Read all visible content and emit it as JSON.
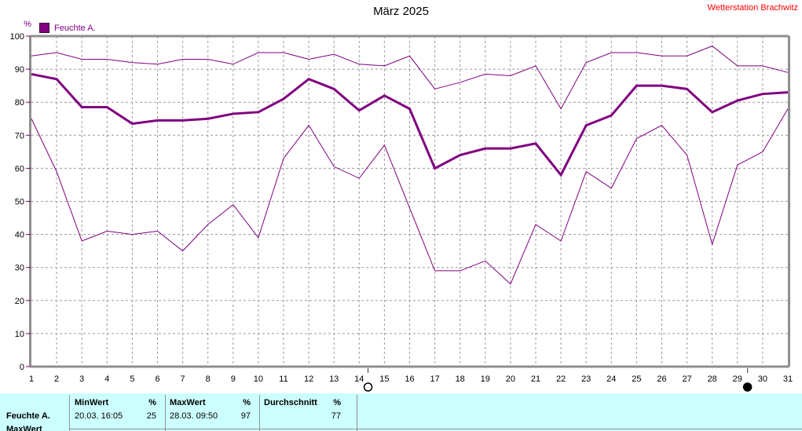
{
  "header": {
    "title": "März 2025",
    "station": "Wetterstation Brachwitz"
  },
  "legend": {
    "label": "Feuchte A.",
    "color": "#800080"
  },
  "chart_data": {
    "type": "line",
    "title": "März 2025",
    "ylabel": "%",
    "ylim": [
      0,
      100
    ],
    "y_ticks": [
      0,
      10,
      20,
      30,
      40,
      50,
      60,
      70,
      80,
      90,
      100
    ],
    "x_ticks": [
      1,
      2,
      3,
      4,
      5,
      6,
      7,
      8,
      9,
      10,
      11,
      12,
      13,
      14,
      15,
      16,
      17,
      18,
      19,
      20,
      21,
      22,
      23,
      24,
      25,
      26,
      27,
      28,
      29,
      30,
      31
    ],
    "grid": true,
    "legend_position": "top-left",
    "line_color": "#800080",
    "series": [
      {
        "name": "max",
        "width": 1,
        "values": [
          94,
          95,
          93,
          93,
          92,
          91.5,
          93,
          93,
          91.5,
          95,
          95,
          93,
          94.5,
          91.5,
          91,
          94,
          84,
          86,
          88.5,
          88,
          91,
          78,
          92,
          95,
          95,
          94,
          94,
          97,
          91,
          91,
          89
        ]
      },
      {
        "name": "avg",
        "width": 3,
        "values": [
          88.5,
          87,
          78.5,
          78.5,
          73.5,
          74.5,
          74.5,
          75,
          76.5,
          77,
          81,
          87,
          84,
          77.5,
          82,
          78,
          60,
          64,
          66,
          66,
          67.5,
          58,
          73,
          76,
          85,
          85,
          84,
          77,
          80.5,
          82.5,
          83
        ]
      },
      {
        "name": "min",
        "width": 1,
        "values": [
          75,
          59,
          38,
          41,
          40,
          41,
          35,
          43,
          49,
          39,
          63,
          73,
          60.5,
          57,
          67,
          48,
          29,
          29,
          32,
          25,
          43,
          38,
          59,
          54,
          69,
          73,
          64,
          37,
          61,
          65,
          78
        ]
      }
    ],
    "axis_markers": [
      {
        "x_day": 14.35,
        "symbol": "open-circle"
      },
      {
        "x_day": 29.4,
        "symbol": "filled-circle"
      }
    ]
  },
  "stats_table": {
    "row_label": "Feuchte A.",
    "next_row_label": "MaxWert",
    "columns": [
      {
        "header": "MinWert",
        "unit": "%",
        "datetime": "20.03.  16:05",
        "value": "25"
      },
      {
        "header": "MaxWert",
        "unit": "%",
        "datetime": "28.03.  09:50",
        "value": "97"
      },
      {
        "header": "Durchschnitt",
        "unit": "%",
        "datetime": "",
        "value": "77"
      }
    ]
  },
  "colors": {
    "line": "#800080",
    "station_text": "#ff0000",
    "table_bg": "#ccffff",
    "axis_border": "#8f8f8f",
    "gridline": "#9c9c9c",
    "text": "#000000"
  }
}
